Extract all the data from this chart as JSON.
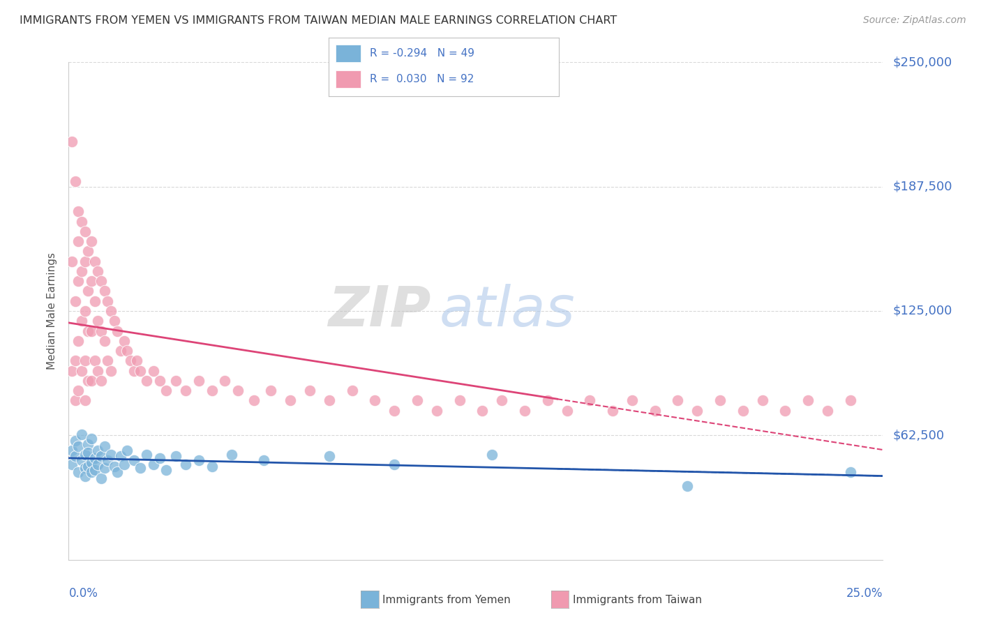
{
  "title": "IMMIGRANTS FROM YEMEN VS IMMIGRANTS FROM TAIWAN MEDIAN MALE EARNINGS CORRELATION CHART",
  "source": "Source: ZipAtlas.com",
  "ylabel": "Median Male Earnings",
  "yticks": [
    0,
    62500,
    125000,
    187500,
    250000
  ],
  "ytick_labels": [
    "",
    "$62,500",
    "$125,000",
    "$187,500",
    "$250,000"
  ],
  "xlim": [
    0.0,
    0.25
  ],
  "ylim": [
    0,
    250000
  ],
  "yemen_color": "#7ab3d9",
  "taiwan_color": "#f09ab0",
  "yemen_trend_color": "#2255aa",
  "taiwan_trend_color": "#dd4477",
  "background_color": "#ffffff",
  "grid_color": "#d8d8d8",
  "axis_label_color": "#4472c4",
  "watermark_zip": "ZIP",
  "watermark_atlas": "atlas",
  "yemen_R": -0.294,
  "yemen_N": 49,
  "taiwan_R": 0.03,
  "taiwan_N": 92,
  "yemen_scatter_x": [
    0.001,
    0.001,
    0.002,
    0.002,
    0.003,
    0.003,
    0.004,
    0.004,
    0.005,
    0.005,
    0.005,
    0.006,
    0.006,
    0.006,
    0.007,
    0.007,
    0.007,
    0.008,
    0.008,
    0.009,
    0.009,
    0.01,
    0.01,
    0.011,
    0.011,
    0.012,
    0.013,
    0.014,
    0.015,
    0.016,
    0.017,
    0.018,
    0.02,
    0.022,
    0.024,
    0.026,
    0.028,
    0.03,
    0.033,
    0.036,
    0.04,
    0.044,
    0.05,
    0.06,
    0.08,
    0.1,
    0.13,
    0.19,
    0.24
  ],
  "yemen_scatter_y": [
    55000,
    48000,
    52000,
    60000,
    44000,
    57000,
    50000,
    63000,
    46000,
    53000,
    42000,
    58000,
    47000,
    54000,
    49000,
    44000,
    61000,
    51000,
    45000,
    55000,
    48000,
    52000,
    41000,
    57000,
    46000,
    50000,
    53000,
    47000,
    44000,
    52000,
    48000,
    55000,
    50000,
    46000,
    53000,
    48000,
    51000,
    45000,
    52000,
    48000,
    50000,
    47000,
    53000,
    50000,
    52000,
    48000,
    53000,
    37000,
    44000
  ],
  "taiwan_scatter_x": [
    0.001,
    0.001,
    0.001,
    0.002,
    0.002,
    0.002,
    0.002,
    0.003,
    0.003,
    0.003,
    0.003,
    0.003,
    0.004,
    0.004,
    0.004,
    0.004,
    0.005,
    0.005,
    0.005,
    0.005,
    0.005,
    0.006,
    0.006,
    0.006,
    0.006,
    0.007,
    0.007,
    0.007,
    0.007,
    0.008,
    0.008,
    0.008,
    0.009,
    0.009,
    0.009,
    0.01,
    0.01,
    0.01,
    0.011,
    0.011,
    0.012,
    0.012,
    0.013,
    0.013,
    0.014,
    0.015,
    0.016,
    0.017,
    0.018,
    0.019,
    0.02,
    0.021,
    0.022,
    0.024,
    0.026,
    0.028,
    0.03,
    0.033,
    0.036,
    0.04,
    0.044,
    0.048,
    0.052,
    0.057,
    0.062,
    0.068,
    0.074,
    0.08,
    0.087,
    0.094,
    0.1,
    0.107,
    0.113,
    0.12,
    0.127,
    0.133,
    0.14,
    0.147,
    0.153,
    0.16,
    0.167,
    0.173,
    0.18,
    0.187,
    0.193,
    0.2,
    0.207,
    0.213,
    0.22,
    0.227,
    0.233,
    0.24
  ],
  "taiwan_scatter_y": [
    210000,
    150000,
    95000,
    190000,
    130000,
    100000,
    80000,
    175000,
    160000,
    140000,
    110000,
    85000,
    170000,
    145000,
    120000,
    95000,
    165000,
    150000,
    125000,
    100000,
    80000,
    155000,
    135000,
    115000,
    90000,
    160000,
    140000,
    115000,
    90000,
    150000,
    130000,
    100000,
    145000,
    120000,
    95000,
    140000,
    115000,
    90000,
    135000,
    110000,
    130000,
    100000,
    125000,
    95000,
    120000,
    115000,
    105000,
    110000,
    105000,
    100000,
    95000,
    100000,
    95000,
    90000,
    95000,
    90000,
    85000,
    90000,
    85000,
    90000,
    85000,
    90000,
    85000,
    80000,
    85000,
    80000,
    85000,
    80000,
    85000,
    80000,
    75000,
    80000,
    75000,
    80000,
    75000,
    80000,
    75000,
    80000,
    75000,
    80000,
    75000,
    80000,
    75000,
    80000,
    75000,
    80000,
    75000,
    80000,
    75000,
    80000,
    75000,
    80000
  ]
}
